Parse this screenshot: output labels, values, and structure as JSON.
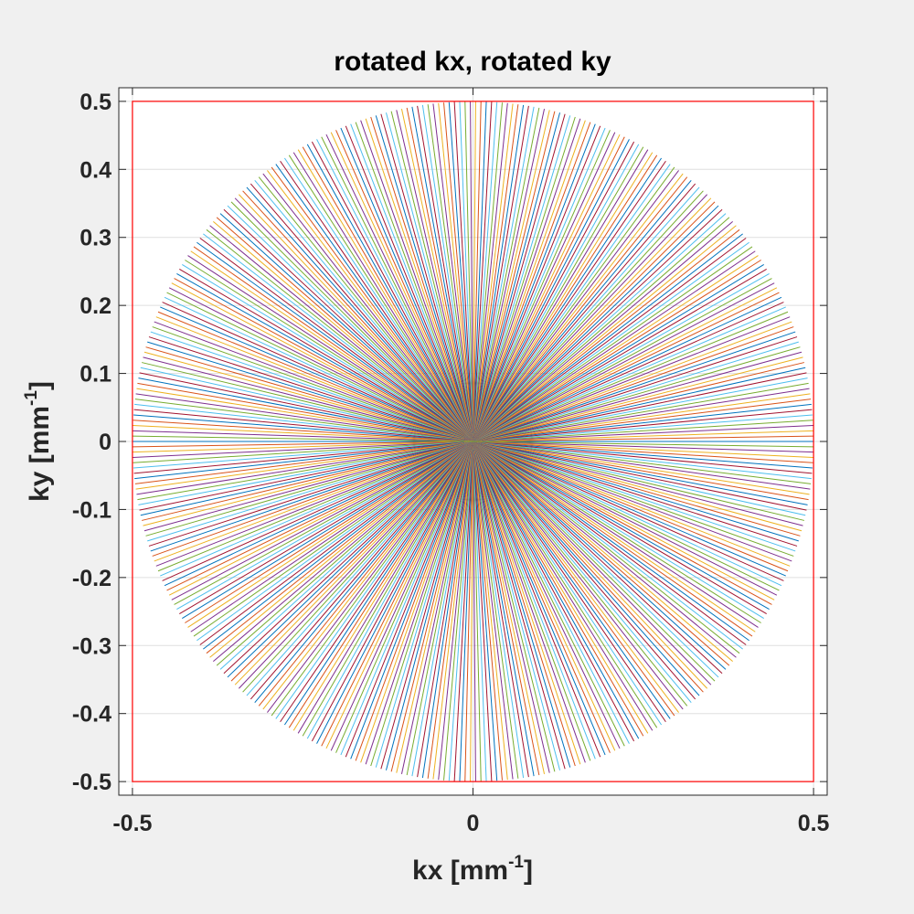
{
  "chart_data": {
    "type": "line",
    "title": "rotated kx, rotated ky",
    "xlabel": {
      "text": "kx [mm",
      "sup": "-1",
      "tail": "]"
    },
    "ylabel": {
      "text": "ky [mm",
      "sup": "-1",
      "tail": "]"
    },
    "xlim": [
      -0.52,
      0.52
    ],
    "ylim": [
      -0.52,
      0.52
    ],
    "xticks": [
      -0.5,
      0,
      0.5
    ],
    "xtick_labels": [
      "-0.5",
      "0",
      "0.5"
    ],
    "yticks": [
      0.5,
      0.4,
      0.3,
      0.2,
      0.1,
      0,
      -0.1,
      -0.2,
      -0.3,
      -0.4,
      -0.5
    ],
    "ytick_labels": [
      "0.5",
      "0.4",
      "0.3",
      "0.2",
      "0.1",
      "0",
      "-0.1",
      "-0.2",
      "-0.3",
      "-0.4",
      "-0.5"
    ],
    "grid": true,
    "radial_spokes": {
      "count": 201,
      "radius": 0.5,
      "center": [
        0,
        0
      ],
      "colors": [
        "#0072BD",
        "#D95319",
        "#EDB120",
        "#7E2F8E",
        "#77AC30",
        "#4DBEEE",
        "#A2142F"
      ]
    },
    "boundary_box": {
      "x": [
        -0.5,
        0.5
      ],
      "y": [
        -0.5,
        0.5
      ],
      "color": "#FF0000"
    }
  }
}
